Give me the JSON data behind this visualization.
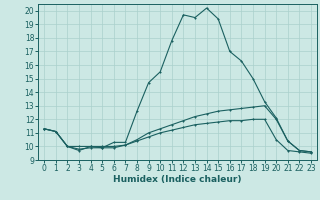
{
  "xlabel": "Humidex (Indice chaleur)",
  "xlim": [
    -0.5,
    23.5
  ],
  "ylim": [
    9,
    20.5
  ],
  "bg_color": "#cce8e4",
  "grid_color": "#aad0cc",
  "line_color": "#1a6060",
  "line1_x": [
    0,
    1,
    2,
    3,
    4,
    5,
    6,
    7,
    8,
    9,
    10,
    11,
    12,
    13,
    14,
    15,
    16,
    17,
    18,
    19,
    20,
    21,
    22,
    23
  ],
  "line1_y": [
    11.3,
    11.1,
    10.0,
    9.7,
    10.0,
    9.9,
    10.3,
    10.3,
    12.6,
    14.7,
    15.5,
    17.8,
    19.7,
    19.5,
    20.2,
    19.4,
    17.0,
    16.3,
    15.0,
    13.3,
    12.1,
    10.4,
    9.7,
    9.6
  ],
  "line2_x": [
    0,
    1,
    2,
    3,
    4,
    5,
    6,
    7,
    8,
    9,
    10,
    11,
    12,
    13,
    14,
    15,
    16,
    17,
    18,
    19,
    20,
    21,
    22,
    23
  ],
  "line2_y": [
    11.3,
    11.1,
    10.0,
    10.0,
    10.0,
    10.0,
    10.0,
    10.1,
    10.5,
    11.0,
    11.3,
    11.6,
    11.9,
    12.2,
    12.4,
    12.6,
    12.7,
    12.8,
    12.9,
    13.0,
    12.0,
    10.4,
    9.7,
    9.6
  ],
  "line3_x": [
    0,
    1,
    2,
    3,
    4,
    5,
    6,
    7,
    8,
    9,
    10,
    11,
    12,
    13,
    14,
    15,
    16,
    17,
    18,
    19,
    20,
    21,
    22,
    23
  ],
  "line3_y": [
    11.3,
    11.1,
    10.0,
    9.8,
    9.9,
    9.9,
    9.9,
    10.1,
    10.4,
    10.7,
    11.0,
    11.2,
    11.4,
    11.6,
    11.7,
    11.8,
    11.9,
    11.9,
    12.0,
    12.0,
    10.5,
    9.7,
    9.6,
    9.5
  ],
  "xtick_labels": [
    "0",
    "1",
    "2",
    "3",
    "4",
    "5",
    "6",
    "7",
    "8",
    "9",
    "10",
    "11",
    "12",
    "13",
    "14",
    "15",
    "16",
    "17",
    "18",
    "19",
    "20",
    "21",
    "22",
    "23"
  ],
  "ytick_labels": [
    "9",
    "10",
    "11",
    "12",
    "13",
    "14",
    "15",
    "16",
    "17",
    "18",
    "19",
    "20"
  ],
  "yticks": [
    9,
    10,
    11,
    12,
    13,
    14,
    15,
    16,
    17,
    18,
    19,
    20
  ],
  "tick_fontsize": 5.5,
  "label_fontsize": 6.5
}
